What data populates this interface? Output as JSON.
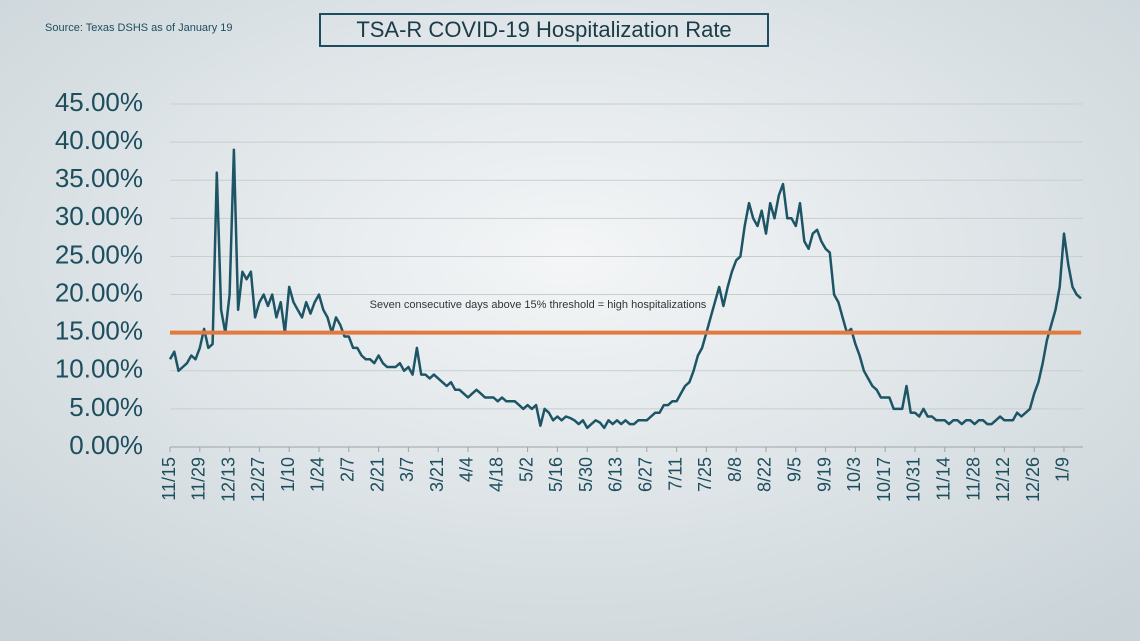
{
  "chart_data": {
    "type": "line",
    "title": "TSA-R COVID-19 Hospitalization Rate",
    "source": "Source: Texas DSHS as of January 19",
    "annotation": "Seven consecutive days above 15% threshold = high hospitalizations",
    "threshold": 15,
    "threshold_color": "#e27a3f",
    "color": "#1d5566",
    "categories": [
      "11/15",
      null,
      null,
      null,
      null,
      null,
      null,
      "11/29",
      null,
      null,
      null,
      null,
      null,
      null,
      "12/13",
      null,
      null,
      null,
      null,
      null,
      null,
      "12/27",
      null,
      null,
      null,
      null,
      null,
      null,
      "1/10",
      null,
      null,
      null,
      null,
      null,
      null,
      "1/24",
      null,
      null,
      null,
      null,
      null,
      null,
      "2/7",
      null,
      null,
      null,
      null,
      null,
      null,
      "2/21",
      null,
      null,
      null,
      null,
      null,
      null,
      "3/7",
      null,
      null,
      null,
      null,
      null,
      null,
      "3/21",
      null,
      null,
      null,
      null,
      null,
      null,
      "4/4",
      null,
      null,
      null,
      null,
      null,
      null,
      "4/18",
      null,
      null,
      null,
      null,
      null,
      null,
      "5/2",
      null,
      null,
      null,
      null,
      null,
      null,
      "5/16",
      null,
      null,
      null,
      null,
      null,
      null,
      "5/30",
      null,
      null,
      null,
      null,
      null,
      null,
      "6/13",
      null,
      null,
      null,
      null,
      null,
      null,
      "6/27",
      null,
      null,
      null,
      null,
      null,
      null,
      "7/11",
      null,
      null,
      null,
      null,
      null,
      null,
      "7/25",
      null,
      null,
      null,
      null,
      null,
      null,
      "8/8",
      null,
      null,
      null,
      null,
      null,
      null,
      "8/22",
      null,
      null,
      null,
      null,
      null,
      null,
      "9/5",
      null,
      null,
      null,
      null,
      null,
      null,
      "9/19",
      null,
      null,
      null,
      null,
      null,
      null,
      "10/3",
      null,
      null,
      null,
      null,
      null,
      null,
      "10/17",
      null,
      null,
      null,
      null,
      null,
      null,
      "10/31",
      null,
      null,
      null,
      null,
      null,
      null,
      "11/14",
      null,
      null,
      null,
      null,
      null,
      null,
      "11/28",
      null,
      null,
      null,
      null,
      null,
      null,
      "12/12",
      null,
      null,
      null,
      null,
      null,
      null,
      "12/26",
      null,
      null,
      null,
      null,
      null,
      null,
      "1/9",
      null,
      null,
      null,
      null
    ],
    "values": [
      11.5,
      12.5,
      10,
      10.5,
      11,
      12,
      11.5,
      13,
      15.5,
      13,
      13.5,
      36,
      18,
      15,
      20,
      39,
      18,
      23,
      22,
      23,
      17,
      19,
      20,
      18.5,
      20,
      17,
      19,
      15,
      21,
      19,
      18,
      17,
      19,
      17.5,
      19,
      20,
      18,
      17,
      15,
      17,
      16,
      14.5,
      14.5,
      13,
      13,
      12,
      11.5,
      11.5,
      11,
      12,
      11,
      10.5,
      10.5,
      10.5,
      11,
      10,
      10.5,
      9.5,
      13,
      9.5,
      9.5,
      9,
      9.5,
      9,
      8.5,
      8,
      8.5,
      7.5,
      7.5,
      7,
      6.5,
      7,
      7.5,
      7,
      6.5,
      6.5,
      6.5,
      6,
      6.5,
      6,
      6,
      6,
      5.5,
      5,
      5.5,
      5,
      5.5,
      2.8,
      5,
      4.5,
      3.5,
      4,
      3.5,
      4,
      3.8,
      3.5,
      3,
      3.5,
      2.5,
      3,
      3.5,
      3.2,
      2.5,
      3.5,
      3,
      3.5,
      3,
      3.5,
      3,
      3,
      3.5,
      3.5,
      3.5,
      4,
      4.5,
      4.5,
      5.5,
      5.5,
      6,
      6,
      7,
      8,
      8.5,
      10,
      12,
      13,
      15,
      17,
      19,
      21,
      18.5,
      21,
      23,
      24.5,
      25,
      29,
      32,
      30,
      29,
      31,
      28,
      32,
      30,
      33,
      34.5,
      30,
      30,
      29,
      32,
      27,
      26,
      28,
      28.5,
      27,
      26,
      25.5,
      20,
      19,
      17,
      15,
      15.5,
      13.5,
      12,
      10,
      9,
      8,
      7.5,
      6.5,
      6.5,
      6.5,
      5,
      5,
      5,
      8,
      4.5,
      4.5,
      4,
      5,
      4,
      4,
      3.5,
      3.5,
      3.5,
      3,
      3.5,
      3.5,
      3,
      3.5,
      3.5,
      3,
      3.5,
      3.5,
      3,
      3,
      3.5,
      4,
      3.5,
      3.5,
      3.5,
      4.5,
      4,
      4.5,
      5,
      7,
      8.5,
      11,
      14,
      16,
      18,
      21,
      28,
      24,
      21,
      20,
      19.5
    ],
    "ylim": [
      0,
      45
    ],
    "yticks": [
      {
        "value": 0,
        "label": "0.00%"
      },
      {
        "value": 5,
        "label": "5.00%"
      },
      {
        "value": 10,
        "label": "10.00%"
      },
      {
        "value": 15,
        "label": "15.00%"
      },
      {
        "value": 20,
        "label": "20.00%"
      },
      {
        "value": 25,
        "label": "25.00%"
      },
      {
        "value": 30,
        "label": "30.00%"
      },
      {
        "value": 35,
        "label": "35.00%"
      },
      {
        "value": 40,
        "label": "40.00%"
      },
      {
        "value": 45,
        "label": "45.00%"
      }
    ],
    "grid": true
  }
}
